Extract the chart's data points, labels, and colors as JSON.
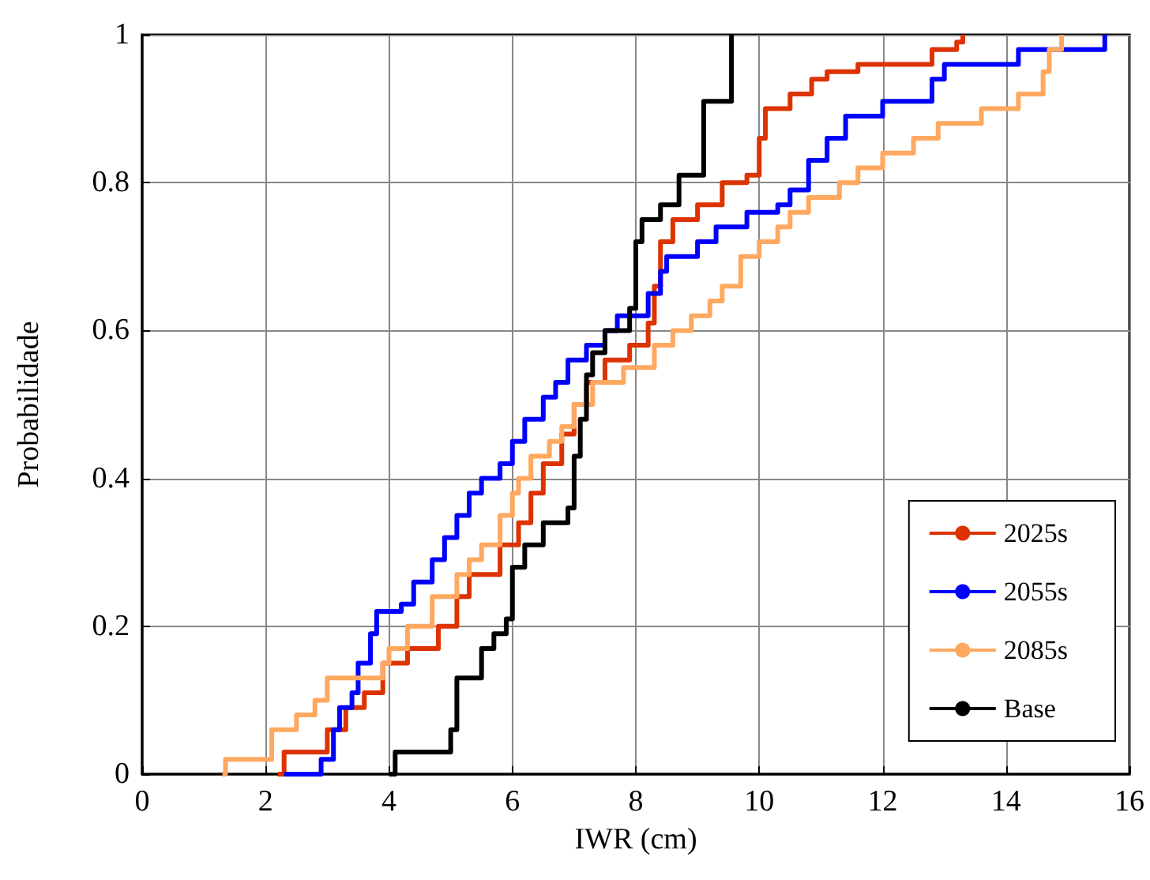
{
  "chart_data": {
    "type": "step",
    "xlabel": "IWR (cm)",
    "ylabel": "Probabilidade",
    "xlim": [
      0,
      16
    ],
    "xticks": [
      0,
      2,
      4,
      6,
      8,
      10,
      12,
      14,
      16
    ],
    "ylim": [
      0,
      1
    ],
    "yticks": [
      0,
      0.2,
      0.4,
      0.6,
      0.8,
      1
    ],
    "grid": true,
    "legend": "bottom right",
    "marker": "none",
    "line_style": "solid",
    "series": [
      {
        "name": "2025s",
        "color": "#dd3300",
        "x": [
          2.2,
          2.3,
          3.0,
          3.3,
          3.6,
          3.9,
          4.3,
          4.8,
          5.1,
          5.3,
          5.8,
          6.1,
          6.3,
          6.5,
          6.8,
          7.0,
          7.2,
          7.5,
          7.9,
          8.2,
          8.3,
          8.4,
          8.6,
          9.0,
          9.4,
          9.8,
          10.0,
          10.1,
          10.5,
          10.85,
          11.1,
          11.6,
          12.8,
          13.2,
          13.3
        ],
        "values": [
          0,
          0.03,
          0.06,
          0.09,
          0.11,
          0.15,
          0.17,
          0.2,
          0.24,
          0.27,
          0.31,
          0.34,
          0.38,
          0.42,
          0.46,
          0.5,
          0.53,
          0.56,
          0.58,
          0.61,
          0.66,
          0.72,
          0.75,
          0.77,
          0.8,
          0.81,
          0.86,
          0.9,
          0.92,
          0.94,
          0.95,
          0.96,
          0.98,
          0.99,
          1.0
        ]
      },
      {
        "name": "2055s",
        "color": "#0000ff",
        "x": [
          2.3,
          2.9,
          3.1,
          3.2,
          3.4,
          3.5,
          3.7,
          3.8,
          4.2,
          4.4,
          4.7,
          4.9,
          5.1,
          5.3,
          5.5,
          5.8,
          6.0,
          6.2,
          6.5,
          6.7,
          6.9,
          7.2,
          7.5,
          7.7,
          8.2,
          8.4,
          8.5,
          9.0,
          9.3,
          9.8,
          10.3,
          10.5,
          10.8,
          11.1,
          11.4,
          12.0,
          12.8,
          13.0,
          14.2,
          15.6
        ],
        "values": [
          0,
          0.02,
          0.06,
          0.09,
          0.11,
          0.15,
          0.19,
          0.22,
          0.23,
          0.26,
          0.29,
          0.32,
          0.35,
          0.38,
          0.4,
          0.42,
          0.45,
          0.48,
          0.51,
          0.53,
          0.56,
          0.58,
          0.6,
          0.62,
          0.65,
          0.68,
          0.7,
          0.72,
          0.74,
          0.76,
          0.77,
          0.79,
          0.83,
          0.86,
          0.89,
          0.91,
          0.94,
          0.96,
          0.98,
          1.0
        ]
      },
      {
        "name": "2085s",
        "color": "#ffa860",
        "x": [
          1.3,
          1.35,
          2.0,
          2.1,
          2.5,
          2.8,
          3.0,
          3.7,
          3.9,
          4.0,
          4.3,
          4.7,
          5.1,
          5.3,
          5.5,
          5.8,
          6.0,
          6.1,
          6.3,
          6.6,
          6.8,
          7.0,
          7.3,
          7.8,
          8.3,
          8.6,
          8.9,
          9.2,
          9.4,
          9.7,
          10.0,
          10.3,
          10.5,
          10.8,
          11.3,
          11.6,
          12.0,
          12.5,
          12.9,
          13.6,
          14.2,
          14.6,
          14.7,
          14.9
        ],
        "values": [
          0,
          0.02,
          0.02,
          0.06,
          0.08,
          0.1,
          0.13,
          0.13,
          0.15,
          0.17,
          0.2,
          0.24,
          0.27,
          0.29,
          0.31,
          0.35,
          0.38,
          0.4,
          0.43,
          0.45,
          0.47,
          0.5,
          0.53,
          0.55,
          0.58,
          0.6,
          0.62,
          0.64,
          0.66,
          0.7,
          0.72,
          0.74,
          0.76,
          0.78,
          0.8,
          0.82,
          0.84,
          0.86,
          0.88,
          0.9,
          0.92,
          0.95,
          0.98,
          1.0
        ]
      },
      {
        "name": "Base",
        "color": "#000000",
        "x": [
          4.0,
          4.1,
          5.0,
          5.1,
          5.5,
          5.7,
          5.9,
          6.0,
          6.2,
          6.5,
          6.9,
          7.0,
          7.1,
          7.2,
          7.3,
          7.5,
          7.9,
          8.0,
          8.1,
          8.4,
          8.7,
          9.1,
          9.55
        ],
        "values": [
          0,
          0.03,
          0.06,
          0.13,
          0.17,
          0.19,
          0.21,
          0.28,
          0.31,
          0.34,
          0.36,
          0.43,
          0.48,
          0.54,
          0.57,
          0.6,
          0.63,
          0.72,
          0.75,
          0.77,
          0.81,
          0.91,
          1.0
        ]
      }
    ]
  }
}
